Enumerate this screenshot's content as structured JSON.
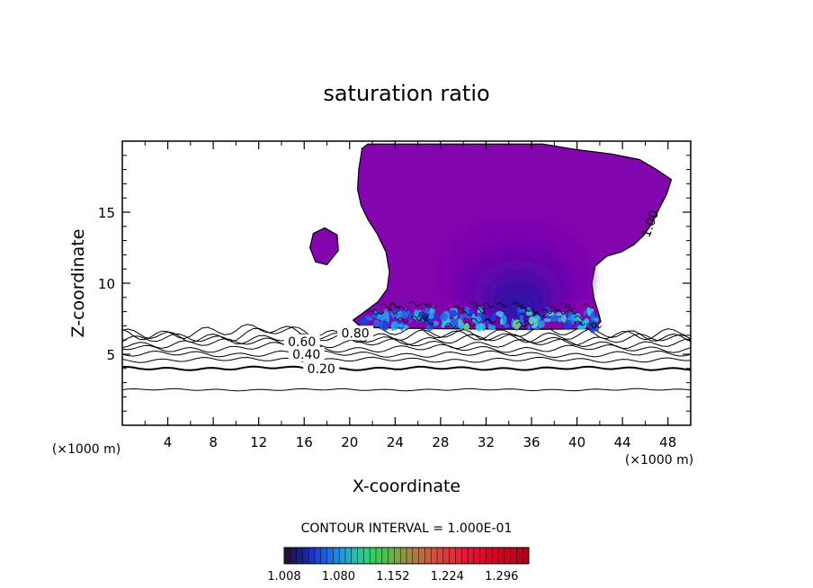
{
  "chart_data": {
    "type": "contour",
    "title": "saturation ratio",
    "xlabel": "X-coordinate",
    "ylabel": "Z-coordinate",
    "x_unit_left": "(×1000 m)",
    "x_unit_right": "(×1000 m)",
    "xlim": [
      0,
      50
    ],
    "ylim": [
      0,
      20
    ],
    "x_ticks": [
      4,
      8,
      12,
      16,
      20,
      24,
      28,
      32,
      36,
      40,
      44,
      48
    ],
    "y_ticks": [
      5,
      10,
      15
    ],
    "contour_interval_text": "CONTOUR INTERVAL = 1.000E-01",
    "contour_labels": [
      {
        "text": "0.20",
        "x": 17.5,
        "z": 4.0
      },
      {
        "text": "0.40",
        "x": 16.2,
        "z": 5.0
      },
      {
        "text": "0.60",
        "x": 15.8,
        "z": 5.9
      },
      {
        "text": "0.80",
        "x": 20.5,
        "z": 6.5
      },
      {
        "text": "1.00",
        "x": 46.4,
        "z": 14.2
      }
    ],
    "line_contours": [
      {
        "value": 0.1,
        "z": 2.5,
        "amp": 0.05
      },
      {
        "value": 0.2,
        "z": 4.0,
        "amp": 0.08,
        "bold": true
      },
      {
        "value": 0.3,
        "z": 4.6,
        "amp": 0.12
      },
      {
        "value": 0.4,
        "z": 5.0,
        "amp": 0.15
      },
      {
        "value": 0.5,
        "z": 5.4,
        "amp": 0.18
      },
      {
        "value": 0.6,
        "z": 5.75,
        "amp": 0.22
      },
      {
        "value": 0.7,
        "z": 6.05,
        "amp": 0.25
      },
      {
        "value": 0.8,
        "z": 6.3,
        "amp": 0.3
      },
      {
        "value": 0.9,
        "z": 6.5,
        "amp": 0.32
      }
    ],
    "cloud_outline": [
      [
        21,
        6.9
      ],
      [
        20.3,
        7.4
      ],
      [
        21.5,
        8.1
      ],
      [
        22.5,
        8.7
      ],
      [
        23.3,
        9.6
      ],
      [
        23.5,
        10.8
      ],
      [
        23.2,
        12.2
      ],
      [
        22.4,
        13.5
      ],
      [
        21.6,
        14.5
      ],
      [
        21.0,
        15.5
      ],
      [
        20.7,
        16.6
      ],
      [
        20.8,
        18.0
      ],
      [
        21.1,
        19.5
      ],
      [
        21.6,
        19.8
      ],
      [
        30,
        19.8
      ],
      [
        37,
        19.8
      ],
      [
        40,
        19.4
      ],
      [
        43,
        19.1
      ],
      [
        45.5,
        18.7
      ],
      [
        47,
        18.0
      ],
      [
        48.3,
        17.3
      ],
      [
        47.9,
        16.3
      ],
      [
        47.2,
        15.2
      ],
      [
        46.6,
        14.2
      ],
      [
        45.9,
        13.4
      ],
      [
        45.0,
        12.7
      ],
      [
        43.9,
        12.2
      ],
      [
        42.6,
        11.9
      ],
      [
        41.6,
        11.2
      ],
      [
        41.3,
        10.0
      ],
      [
        41.5,
        8.9
      ],
      [
        41.9,
        7.9
      ],
      [
        42.1,
        7.3
      ],
      [
        41.5,
        6.8
      ],
      [
        36,
        6.75
      ],
      [
        28,
        6.8
      ],
      [
        23,
        6.85
      ]
    ],
    "cloud_blob": [
      [
        16.5,
        12.5
      ],
      [
        16.8,
        13.5
      ],
      [
        17.8,
        13.9
      ],
      [
        18.9,
        13.4
      ],
      [
        19.0,
        12.3
      ],
      [
        18.0,
        11.3
      ],
      [
        17.0,
        11.5
      ]
    ],
    "filled_levels": [
      {
        "color": "#7a05b0",
        "cx": 34.5,
        "cz": 10.2,
        "rx": 6.8,
        "rtop": 5.8,
        "rbot": 3.3
      },
      {
        "color": "#6a06ae",
        "cx": 34.5,
        "cz": 9.6,
        "rx": 5.2,
        "rtop": 4.3,
        "rbot": 2.7
      },
      {
        "color": "#5a08aa",
        "cx": 34.8,
        "cz": 9.2,
        "rx": 3.8,
        "rtop": 3.2,
        "rbot": 2.3
      },
      {
        "color": "#3f0ca8",
        "cx": 34.8,
        "cz": 8.8,
        "rx": 2.6,
        "rtop": 2.4,
        "rbot": 1.9
      },
      {
        "color": "#2a12a8",
        "cx": 34.8,
        "cz": 8.3,
        "rx": 1.6,
        "rtop": 1.6,
        "rbot": 1.4
      }
    ],
    "colors": {
      "cloud_fill": "#8305ae",
      "cloud_outline": "#000000",
      "base_band_colors": [
        "#1d3dd8",
        "#1f6fe6",
        "#23a5ee",
        "#29c9ef",
        "#3fd6c8",
        "#6fdf7a",
        "#56b8ff"
      ]
    },
    "colorbar": {
      "min": 1.008,
      "max": 1.332,
      "tick_values": [
        1.008,
        1.08,
        1.152,
        1.224,
        1.296
      ],
      "tick_labels": [
        "1.008",
        "1.080",
        "1.152",
        "1.224",
        "1.296"
      ],
      "levels": [
        "#241238",
        "#20175a",
        "#1c1e7e",
        "#1a28a0",
        "#1b36bd",
        "#1d47d0",
        "#1f5ada",
        "#216edf",
        "#2383de",
        "#2598d6",
        "#27aac7",
        "#29b9b2",
        "#2cc497",
        "#30cb7b",
        "#36cd62",
        "#41c953",
        "#52bf4d",
        "#66b24a",
        "#7aa449",
        "#8d9548",
        "#9f8746",
        "#ae7944",
        "#bb6c42",
        "#c65f41",
        "#cf533f",
        "#d6473d",
        "#db3b3b",
        "#de3039",
        "#e02637",
        "#e11d34",
        "#e11532",
        "#e00f2f",
        "#de0a2c",
        "#da0729",
        "#d50526",
        "#cf0424",
        "#c80422",
        "#c00420",
        "#b6041e",
        "#ab051c"
      ]
    },
    "grid": false,
    "legend": "bottom"
  }
}
